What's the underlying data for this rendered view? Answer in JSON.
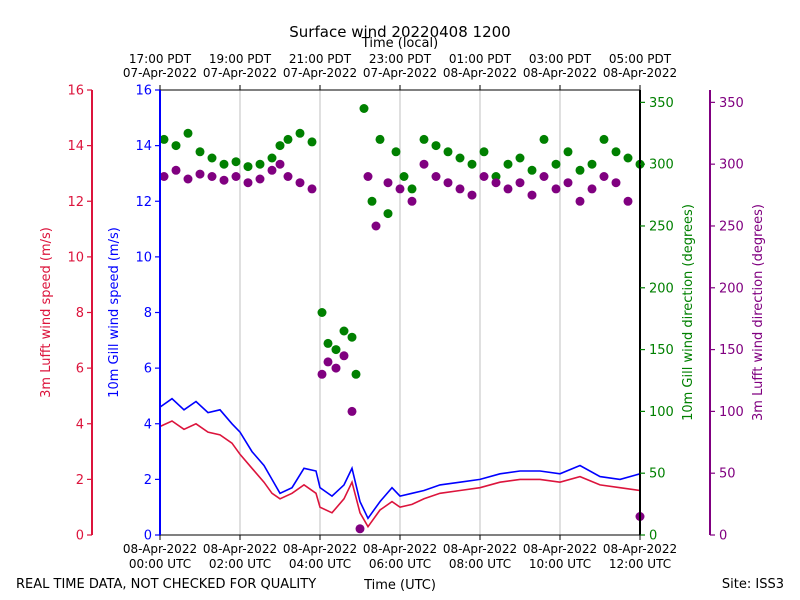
{
  "chart_data": {
    "type": "line+scatter",
    "title": "Surface wind 20220408 1200",
    "top_axis_label": "Time (local)",
    "top_ticks": [
      {
        "line1": "17:00 PDT",
        "line2": "07-Apr-2022",
        "hour": 0
      },
      {
        "line1": "19:00 PDT",
        "line2": "07-Apr-2022",
        "hour": 2
      },
      {
        "line1": "21:00 PDT",
        "line2": "07-Apr-2022",
        "hour": 4
      },
      {
        "line1": "23:00 PDT",
        "line2": "07-Apr-2022",
        "hour": 6
      },
      {
        "line1": "01:00 PDT",
        "line2": "08-Apr-2022",
        "hour": 8
      },
      {
        "line1": "03:00 PDT",
        "line2": "08-Apr-2022",
        "hour": 10
      },
      {
        "line1": "05:00 PDT",
        "line2": "08-Apr-2022",
        "hour": 12
      }
    ],
    "xlabel": "Time (UTC)",
    "bottom_ticks": [
      {
        "line1": "08-Apr-2022",
        "line2": "00:00 UTC",
        "hour": 0
      },
      {
        "line1": "08-Apr-2022",
        "line2": "02:00 UTC",
        "hour": 2
      },
      {
        "line1": "08-Apr-2022",
        "line2": "04:00 UTC",
        "hour": 4
      },
      {
        "line1": "08-Apr-2022",
        "line2": "06:00 UTC",
        "hour": 6
      },
      {
        "line1": "08-Apr-2022",
        "line2": "08:00 UTC",
        "hour": 8
      },
      {
        "line1": "08-Apr-2022",
        "line2": "10:00 UTC",
        "hour": 10
      },
      {
        "line1": "08-Apr-2022",
        "line2": "12:00 UTC",
        "hour": 12
      }
    ],
    "xlim": [
      0,
      12
    ],
    "left_axes": [
      {
        "label": "3m Lufft wind speed (m/s)",
        "color": "#dc143c",
        "ylim": [
          0,
          16
        ],
        "ticks": [
          0,
          2,
          4,
          6,
          8,
          10,
          12,
          14,
          16
        ]
      },
      {
        "label": "10m Gill wind speed (m/s)",
        "color": "#0000ff",
        "ylim": [
          0,
          16
        ],
        "ticks": [
          0,
          2,
          4,
          6,
          8,
          10,
          12,
          14,
          16
        ]
      }
    ],
    "right_axes": [
      {
        "label": "10m Gill wind direction (degrees)",
        "color": "#008000",
        "ylim": [
          0,
          360
        ],
        "ticks": [
          0,
          50,
          100,
          150,
          200,
          250,
          300,
          350
        ]
      },
      {
        "label": "3m Lufft wind direction (degrees)",
        "color": "#800080",
        "ylim": [
          0,
          360
        ],
        "ticks": [
          0,
          50,
          100,
          150,
          200,
          250,
          300,
          350
        ]
      }
    ],
    "series": [
      {
        "name": "10m Gill wind speed",
        "kind": "line",
        "color": "#0000ff",
        "points": [
          [
            0,
            4.6
          ],
          [
            0.3,
            4.9
          ],
          [
            0.6,
            4.5
          ],
          [
            0.9,
            4.8
          ],
          [
            1.2,
            4.4
          ],
          [
            1.5,
            4.5
          ],
          [
            1.8,
            4.0
          ],
          [
            2.0,
            3.7
          ],
          [
            2.3,
            3.0
          ],
          [
            2.6,
            2.5
          ],
          [
            2.8,
            2.0
          ],
          [
            3.0,
            1.5
          ],
          [
            3.3,
            1.7
          ],
          [
            3.6,
            2.4
          ],
          [
            3.9,
            2.3
          ],
          [
            4.0,
            1.7
          ],
          [
            4.3,
            1.4
          ],
          [
            4.6,
            1.8
          ],
          [
            4.8,
            2.4
          ],
          [
            5.0,
            1.2
          ],
          [
            5.2,
            0.6
          ],
          [
            5.5,
            1.2
          ],
          [
            5.8,
            1.7
          ],
          [
            6.0,
            1.4
          ],
          [
            6.3,
            1.5
          ],
          [
            6.6,
            1.6
          ],
          [
            7.0,
            1.8
          ],
          [
            7.5,
            1.9
          ],
          [
            8.0,
            2.0
          ],
          [
            8.5,
            2.2
          ],
          [
            9.0,
            2.3
          ],
          [
            9.5,
            2.3
          ],
          [
            10.0,
            2.2
          ],
          [
            10.5,
            2.5
          ],
          [
            11.0,
            2.1
          ],
          [
            11.5,
            2.0
          ],
          [
            12.0,
            2.2
          ]
        ]
      },
      {
        "name": "3m Lufft wind speed",
        "kind": "line",
        "color": "#dc143c",
        "points": [
          [
            0,
            3.9
          ],
          [
            0.3,
            4.1
          ],
          [
            0.6,
            3.8
          ],
          [
            0.9,
            4.0
          ],
          [
            1.2,
            3.7
          ],
          [
            1.5,
            3.6
          ],
          [
            1.8,
            3.3
          ],
          [
            2.0,
            2.9
          ],
          [
            2.3,
            2.4
          ],
          [
            2.6,
            1.9
          ],
          [
            2.8,
            1.5
          ],
          [
            3.0,
            1.3
          ],
          [
            3.3,
            1.5
          ],
          [
            3.6,
            1.8
          ],
          [
            3.9,
            1.5
          ],
          [
            4.0,
            1.0
          ],
          [
            4.3,
            0.8
          ],
          [
            4.6,
            1.3
          ],
          [
            4.8,
            1.9
          ],
          [
            5.0,
            0.8
          ],
          [
            5.2,
            0.3
          ],
          [
            5.5,
            0.9
          ],
          [
            5.8,
            1.2
          ],
          [
            6.0,
            1.0
          ],
          [
            6.3,
            1.1
          ],
          [
            6.6,
            1.3
          ],
          [
            7.0,
            1.5
          ],
          [
            7.5,
            1.6
          ],
          [
            8.0,
            1.7
          ],
          [
            8.5,
            1.9
          ],
          [
            9.0,
            2.0
          ],
          [
            9.5,
            2.0
          ],
          [
            10.0,
            1.9
          ],
          [
            10.5,
            2.1
          ],
          [
            11.0,
            1.8
          ],
          [
            11.5,
            1.7
          ],
          [
            12.0,
            1.6
          ]
        ]
      },
      {
        "name": "10m Gill wind direction",
        "kind": "scatter",
        "color": "#008000",
        "points": [
          [
            0.1,
            320
          ],
          [
            0.4,
            315
          ],
          [
            0.7,
            325
          ],
          [
            1.0,
            310
          ],
          [
            1.3,
            305
          ],
          [
            1.6,
            300
          ],
          [
            1.9,
            302
          ],
          [
            2.2,
            298
          ],
          [
            2.5,
            300
          ],
          [
            2.8,
            305
          ],
          [
            3.0,
            315
          ],
          [
            3.2,
            320
          ],
          [
            3.5,
            325
          ],
          [
            3.8,
            318
          ],
          [
            4.05,
            180
          ],
          [
            4.2,
            155
          ],
          [
            4.4,
            150
          ],
          [
            4.6,
            165
          ],
          [
            4.8,
            160
          ],
          [
            4.9,
            130
          ],
          [
            5.1,
            345
          ],
          [
            5.3,
            270
          ],
          [
            5.5,
            320
          ],
          [
            5.7,
            260
          ],
          [
            5.9,
            310
          ],
          [
            6.1,
            290
          ],
          [
            6.3,
            280
          ],
          [
            6.6,
            320
          ],
          [
            6.9,
            315
          ],
          [
            7.2,
            310
          ],
          [
            7.5,
            305
          ],
          [
            7.8,
            300
          ],
          [
            8.1,
            310
          ],
          [
            8.4,
            290
          ],
          [
            8.7,
            300
          ],
          [
            9.0,
            305
          ],
          [
            9.3,
            295
          ],
          [
            9.6,
            320
          ],
          [
            9.9,
            300
          ],
          [
            10.2,
            310
          ],
          [
            10.5,
            295
          ],
          [
            10.8,
            300
          ],
          [
            11.1,
            320
          ],
          [
            11.4,
            310
          ],
          [
            11.7,
            305
          ],
          [
            12.0,
            300
          ]
        ]
      },
      {
        "name": "3m Lufft wind direction",
        "kind": "scatter",
        "color": "#800080",
        "points": [
          [
            0.1,
            290
          ],
          [
            0.4,
            295
          ],
          [
            0.7,
            288
          ],
          [
            1.0,
            292
          ],
          [
            1.3,
            290
          ],
          [
            1.6,
            287
          ],
          [
            1.9,
            290
          ],
          [
            2.2,
            285
          ],
          [
            2.5,
            288
          ],
          [
            2.8,
            295
          ],
          [
            3.0,
            300
          ],
          [
            3.2,
            290
          ],
          [
            3.5,
            285
          ],
          [
            3.8,
            280
          ],
          [
            4.05,
            130
          ],
          [
            4.2,
            140
          ],
          [
            4.4,
            135
          ],
          [
            4.6,
            145
          ],
          [
            4.8,
            100
          ],
          [
            5.0,
            5
          ],
          [
            5.2,
            290
          ],
          [
            5.4,
            250
          ],
          [
            5.7,
            285
          ],
          [
            6.0,
            280
          ],
          [
            6.3,
            270
          ],
          [
            6.6,
            300
          ],
          [
            6.9,
            290
          ],
          [
            7.2,
            285
          ],
          [
            7.5,
            280
          ],
          [
            7.8,
            275
          ],
          [
            8.1,
            290
          ],
          [
            8.4,
            285
          ],
          [
            8.7,
            280
          ],
          [
            9.0,
            285
          ],
          [
            9.3,
            275
          ],
          [
            9.6,
            290
          ],
          [
            9.9,
            280
          ],
          [
            10.2,
            285
          ],
          [
            10.5,
            270
          ],
          [
            10.8,
            280
          ],
          [
            11.1,
            290
          ],
          [
            11.4,
            285
          ],
          [
            11.7,
            270
          ],
          [
            12.0,
            15
          ]
        ]
      }
    ]
  },
  "footer": {
    "left_note": "REAL TIME DATA, NOT CHECKED FOR QUALITY",
    "right_note": "Site: ISS3"
  }
}
